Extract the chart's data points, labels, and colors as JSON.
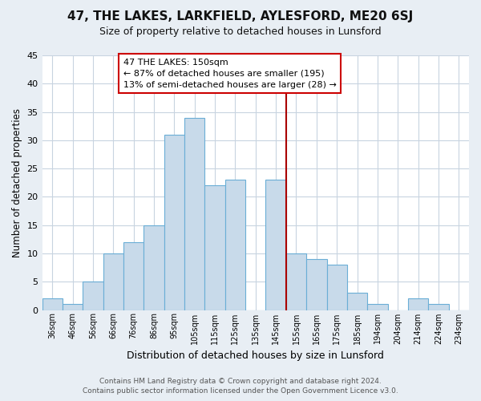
{
  "title": "47, THE LAKES, LARKFIELD, AYLESFORD, ME20 6SJ",
  "subtitle": "Size of property relative to detached houses in Lunsford",
  "xlabel": "Distribution of detached houses by size in Lunsford",
  "ylabel": "Number of detached properties",
  "bar_labels": [
    "36sqm",
    "46sqm",
    "56sqm",
    "66sqm",
    "76sqm",
    "86sqm",
    "95sqm",
    "105sqm",
    "115sqm",
    "125sqm",
    "135sqm",
    "145sqm",
    "155sqm",
    "165sqm",
    "175sqm",
    "185sqm",
    "194sqm",
    "204sqm",
    "214sqm",
    "224sqm",
    "234sqm"
  ],
  "bar_values": [
    2,
    1,
    5,
    10,
    12,
    15,
    31,
    34,
    22,
    23,
    0,
    23,
    10,
    9,
    8,
    3,
    1,
    0,
    2,
    1,
    0
  ],
  "bar_color": "#c8daea",
  "bar_edge_color": "#6aaed6",
  "vline_color": "#aa0000",
  "annotation_title": "47 THE LAKES: 150sqm",
  "annotation_line1": "← 87% of detached houses are smaller (195)",
  "annotation_line2": "13% of semi-detached houses are larger (28) →",
  "annotation_box_facecolor": "#ffffff",
  "annotation_box_edgecolor": "#cc0000",
  "ylim": [
    0,
    45
  ],
  "yticks": [
    0,
    5,
    10,
    15,
    20,
    25,
    30,
    35,
    40,
    45
  ],
  "footer1": "Contains HM Land Registry data © Crown copyright and database right 2024.",
  "footer2": "Contains public sector information licensed under the Open Government Licence v3.0.",
  "fig_bg_color": "#e8eef4",
  "plot_bg_color": "#ffffff",
  "grid_color": "#c8d4e0"
}
